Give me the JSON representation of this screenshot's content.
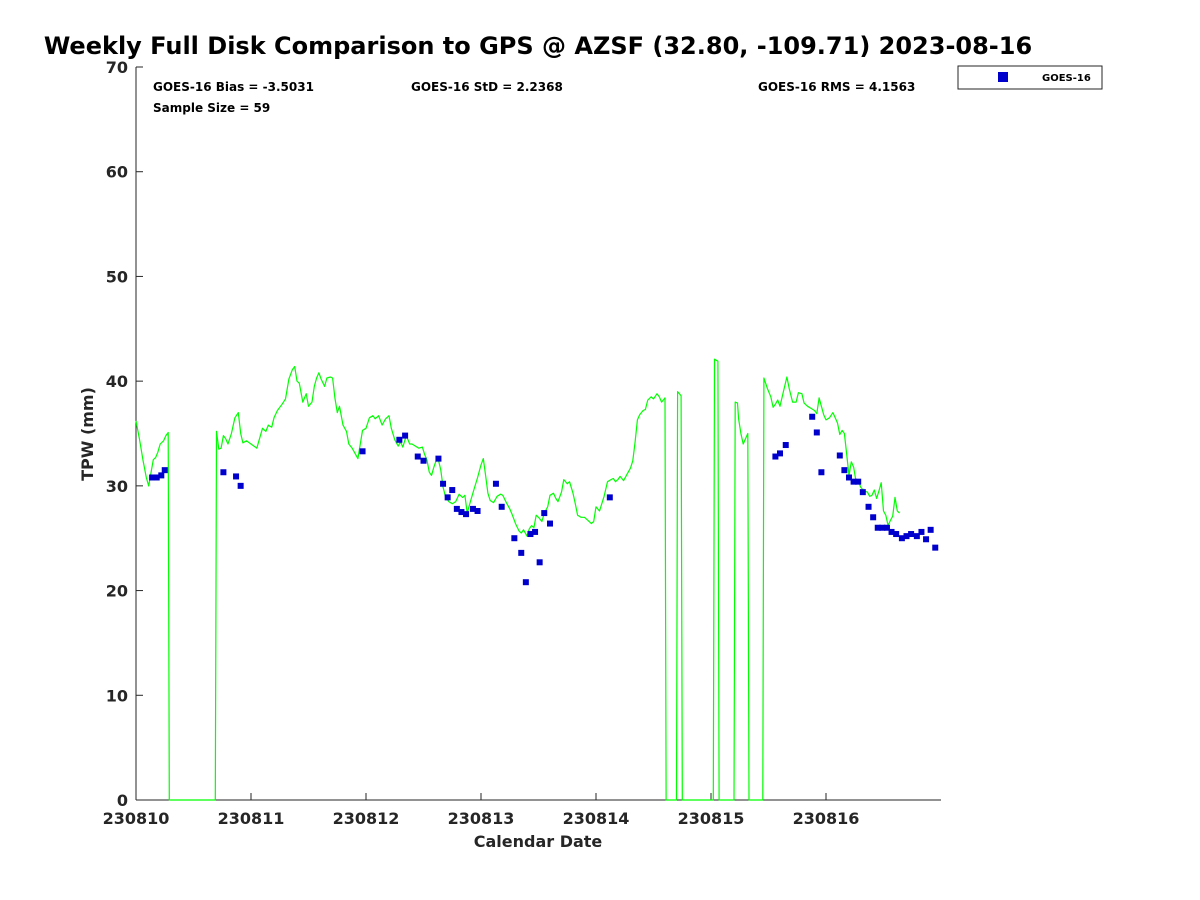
{
  "chart_data": {
    "type": "scatter",
    "title": "Weekly Full Disk Comparison to GPS @ AZSF (32.80, -109.71) 2023-08-16",
    "xlabel": "Calendar Date",
    "ylabel": "TPW (mm)",
    "xlim": [
      0,
      7
    ],
    "ylim": [
      0,
      70
    ],
    "x_tick_values": [
      0,
      1,
      2,
      3,
      4,
      5,
      6
    ],
    "x_tick_labels": [
      "230810",
      "230811",
      "230812",
      "230813",
      "230814",
      "230815",
      "230816"
    ],
    "y_tick_values": [
      0,
      10,
      20,
      30,
      40,
      50,
      60,
      70
    ],
    "y_tick_labels": [
      "0",
      "10",
      "20",
      "30",
      "40",
      "50",
      "60",
      "70"
    ],
    "stats": {
      "bias": "GOES-16 Bias = -3.5031",
      "std": "GOES-16 StD = 2.2368",
      "rms": "GOES-16 RMS = 4.1563",
      "sample": "Sample Size = 59"
    },
    "legend": {
      "label": "GOES-16",
      "position": "top-right outside",
      "marker_color": "#0000cc"
    },
    "series": [
      {
        "name": "GOES-16",
        "kind": "scatter",
        "color": "#0000cc",
        "points": [
          [
            0.14,
            30.8
          ],
          [
            0.18,
            30.8
          ],
          [
            0.22,
            31.0
          ],
          [
            0.25,
            31.5
          ],
          [
            0.76,
            31.3
          ],
          [
            0.87,
            30.9
          ],
          [
            0.91,
            30.0
          ],
          [
            1.97,
            33.3
          ],
          [
            2.29,
            34.4
          ],
          [
            2.34,
            34.8
          ],
          [
            2.45,
            32.8
          ],
          [
            2.5,
            32.4
          ],
          [
            2.63,
            32.6
          ],
          [
            2.67,
            30.2
          ],
          [
            2.71,
            28.9
          ],
          [
            2.75,
            29.6
          ],
          [
            2.79,
            27.8
          ],
          [
            2.83,
            27.5
          ],
          [
            2.87,
            27.3
          ],
          [
            2.93,
            27.8
          ],
          [
            2.97,
            27.6
          ],
          [
            3.13,
            30.2
          ],
          [
            3.18,
            28.0
          ],
          [
            3.29,
            25.0
          ],
          [
            3.35,
            23.6
          ],
          [
            3.39,
            20.8
          ],
          [
            3.43,
            25.4
          ],
          [
            3.47,
            25.6
          ],
          [
            3.51,
            22.7
          ],
          [
            3.55,
            27.4
          ],
          [
            3.6,
            26.4
          ],
          [
            4.12,
            28.9
          ],
          [
            5.56,
            32.8
          ],
          [
            5.6,
            33.1
          ],
          [
            5.65,
            33.9
          ],
          [
            5.88,
            36.6
          ],
          [
            5.92,
            35.1
          ],
          [
            5.96,
            31.3
          ],
          [
            6.12,
            32.9
          ],
          [
            6.16,
            31.5
          ],
          [
            6.2,
            30.8
          ],
          [
            6.24,
            30.4
          ],
          [
            6.28,
            30.4
          ],
          [
            6.32,
            29.4
          ],
          [
            6.37,
            28.0
          ],
          [
            6.41,
            27.0
          ],
          [
            6.45,
            26.0
          ],
          [
            6.49,
            26.0
          ],
          [
            6.53,
            26.0
          ],
          [
            6.57,
            25.6
          ],
          [
            6.61,
            25.4
          ],
          [
            6.66,
            25.0
          ],
          [
            6.7,
            25.2
          ],
          [
            6.74,
            25.4
          ],
          [
            6.79,
            25.2
          ],
          [
            6.83,
            25.6
          ],
          [
            6.87,
            24.9
          ],
          [
            6.91,
            25.8
          ],
          [
            6.95,
            24.1
          ]
        ]
      },
      {
        "name": "GPS",
        "kind": "line",
        "color": "#00ff00",
        "points": [
          [
            0.0,
            36.2
          ],
          [
            0.03,
            34.5
          ],
          [
            0.06,
            32.5
          ],
          [
            0.09,
            30.8
          ],
          [
            0.11,
            30.0
          ],
          [
            0.13,
            31.2
          ],
          [
            0.15,
            32.5
          ],
          [
            0.17,
            32.7
          ],
          [
            0.19,
            33.2
          ],
          [
            0.21,
            34.0
          ],
          [
            0.24,
            34.3
          ],
          [
            0.26,
            34.8
          ],
          [
            0.28,
            35.1
          ],
          [
            0.29,
            0
          ],
          [
            0.69,
            0
          ],
          [
            0.7,
            35.2
          ],
          [
            0.72,
            33.5
          ],
          [
            0.74,
            33.6
          ],
          [
            0.76,
            34.8
          ],
          [
            0.78,
            34.5
          ],
          [
            0.8,
            34.0
          ],
          [
            0.83,
            35.0
          ],
          [
            0.86,
            36.5
          ],
          [
            0.89,
            37.0
          ],
          [
            0.91,
            35.0
          ],
          [
            0.93,
            34.1
          ],
          [
            0.96,
            34.3
          ],
          [
            1.0,
            34.0
          ],
          [
            1.05,
            33.6
          ],
          [
            1.1,
            35.5
          ],
          [
            1.13,
            35.2
          ],
          [
            1.15,
            35.8
          ],
          [
            1.18,
            35.6
          ],
          [
            1.2,
            36.5
          ],
          [
            1.23,
            37.2
          ],
          [
            1.27,
            37.8
          ],
          [
            1.3,
            38.3
          ],
          [
            1.33,
            40.2
          ],
          [
            1.36,
            41.1
          ],
          [
            1.38,
            41.4
          ],
          [
            1.4,
            40.0
          ],
          [
            1.42,
            39.8
          ],
          [
            1.45,
            38.0
          ],
          [
            1.48,
            38.8
          ],
          [
            1.5,
            37.6
          ],
          [
            1.53,
            38.0
          ],
          [
            1.55,
            39.5
          ],
          [
            1.57,
            40.3
          ],
          [
            1.59,
            40.8
          ],
          [
            1.61,
            40.2
          ],
          [
            1.64,
            39.5
          ],
          [
            1.66,
            40.3
          ],
          [
            1.69,
            40.4
          ],
          [
            1.71,
            40.3
          ],
          [
            1.73,
            38.4
          ],
          [
            1.75,
            37.0
          ],
          [
            1.77,
            37.6
          ],
          [
            1.8,
            35.8
          ],
          [
            1.83,
            35.2
          ],
          [
            1.85,
            34.0
          ],
          [
            1.88,
            33.6
          ],
          [
            1.91,
            33.0
          ],
          [
            1.93,
            32.6
          ],
          [
            1.95,
            34.0
          ],
          [
            1.97,
            35.3
          ],
          [
            2.0,
            35.5
          ],
          [
            2.03,
            36.5
          ],
          [
            2.06,
            36.7
          ],
          [
            2.08,
            36.4
          ],
          [
            2.11,
            36.7
          ],
          [
            2.14,
            35.8
          ],
          [
            2.17,
            36.4
          ],
          [
            2.2,
            36.7
          ],
          [
            2.22,
            35.5
          ],
          [
            2.25,
            34.4
          ],
          [
            2.28,
            33.8
          ],
          [
            2.3,
            34.2
          ],
          [
            2.32,
            33.7
          ],
          [
            2.35,
            34.8
          ],
          [
            2.38,
            34.0
          ],
          [
            2.4,
            34.0
          ],
          [
            2.43,
            33.8
          ],
          [
            2.46,
            33.6
          ],
          [
            2.49,
            33.7
          ],
          [
            2.51,
            33.0
          ],
          [
            2.53,
            32.5
          ],
          [
            2.55,
            31.3
          ],
          [
            2.57,
            31.0
          ],
          [
            2.59,
            31.8
          ],
          [
            2.61,
            32.4
          ],
          [
            2.63,
            32.5
          ],
          [
            2.65,
            31.5
          ],
          [
            2.67,
            29.9
          ],
          [
            2.69,
            29.0
          ],
          [
            2.72,
            28.5
          ],
          [
            2.75,
            28.3
          ],
          [
            2.78,
            28.5
          ],
          [
            2.81,
            29.2
          ],
          [
            2.84,
            28.9
          ],
          [
            2.86,
            29.1
          ],
          [
            2.88,
            27.4
          ],
          [
            2.91,
            28.6
          ],
          [
            2.94,
            29.7
          ],
          [
            2.97,
            30.8
          ],
          [
            3.0,
            32.0
          ],
          [
            3.02,
            32.6
          ],
          [
            3.04,
            31.0
          ],
          [
            3.06,
            29.3
          ],
          [
            3.08,
            28.6
          ],
          [
            3.11,
            28.4
          ],
          [
            3.14,
            29.0
          ],
          [
            3.17,
            29.2
          ],
          [
            3.19,
            29.1
          ],
          [
            3.22,
            28.4
          ],
          [
            3.25,
            27.8
          ],
          [
            3.27,
            27.3
          ],
          [
            3.3,
            26.4
          ],
          [
            3.33,
            25.7
          ],
          [
            3.35,
            25.5
          ],
          [
            3.37,
            25.8
          ],
          [
            3.4,
            25.2
          ],
          [
            3.42,
            25.9
          ],
          [
            3.44,
            26.2
          ],
          [
            3.46,
            26.0
          ],
          [
            3.48,
            27.2
          ],
          [
            3.5,
            27.0
          ],
          [
            3.53,
            26.6
          ],
          [
            3.55,
            27.4
          ],
          [
            3.58,
            28.0
          ],
          [
            3.6,
            29.1
          ],
          [
            3.63,
            29.3
          ],
          [
            3.65,
            28.8
          ],
          [
            3.67,
            28.5
          ],
          [
            3.7,
            29.4
          ],
          [
            3.72,
            30.6
          ],
          [
            3.75,
            30.2
          ],
          [
            3.77,
            30.4
          ],
          [
            3.8,
            29.3
          ],
          [
            3.82,
            28.3
          ],
          [
            3.84,
            27.2
          ],
          [
            3.87,
            27.0
          ],
          [
            3.9,
            27.0
          ],
          [
            3.93,
            26.7
          ],
          [
            3.96,
            26.4
          ],
          [
            3.98,
            26.6
          ],
          [
            4.0,
            28.0
          ],
          [
            4.03,
            27.6
          ],
          [
            4.05,
            28.3
          ],
          [
            4.07,
            29.0
          ],
          [
            4.1,
            30.4
          ],
          [
            4.13,
            30.6
          ],
          [
            4.15,
            30.7
          ],
          [
            4.17,
            30.4
          ],
          [
            4.19,
            30.6
          ],
          [
            4.21,
            30.9
          ],
          [
            4.24,
            30.5
          ],
          [
            4.27,
            31.1
          ],
          [
            4.3,
            31.7
          ],
          [
            4.32,
            32.4
          ],
          [
            4.34,
            34.2
          ],
          [
            4.36,
            36.3
          ],
          [
            4.38,
            36.8
          ],
          [
            4.41,
            37.2
          ],
          [
            4.43,
            37.3
          ],
          [
            4.45,
            38.2
          ],
          [
            4.48,
            38.5
          ],
          [
            4.5,
            38.3
          ],
          [
            4.53,
            38.8
          ],
          [
            4.55,
            38.5
          ],
          [
            4.57,
            38.0
          ],
          [
            4.6,
            38.4
          ],
          [
            4.61,
            0
          ],
          [
            4.7,
            0
          ],
          [
            4.71,
            39.0
          ],
          [
            4.74,
            38.6
          ],
          [
            4.75,
            0
          ],
          [
            5.02,
            0
          ],
          [
            5.03,
            42.1
          ],
          [
            5.06,
            41.9
          ],
          [
            5.07,
            0
          ],
          [
            5.2,
            0
          ],
          [
            5.21,
            38.0
          ],
          [
            5.23,
            37.9
          ],
          [
            5.24,
            36.4
          ],
          [
            5.26,
            35.0
          ],
          [
            5.28,
            34.0
          ],
          [
            5.3,
            34.5
          ],
          [
            5.32,
            35.0
          ],
          [
            5.33,
            0
          ],
          [
            5.45,
            0
          ],
          [
            5.46,
            40.3
          ],
          [
            5.49,
            39.3
          ],
          [
            5.52,
            38.5
          ],
          [
            5.54,
            37.5
          ],
          [
            5.56,
            37.8
          ],
          [
            5.58,
            38.2
          ],
          [
            5.6,
            37.6
          ],
          [
            5.63,
            39.0
          ],
          [
            5.66,
            40.4
          ],
          [
            5.68,
            39.3
          ],
          [
            5.71,
            38.0
          ],
          [
            5.74,
            38.0
          ],
          [
            5.76,
            38.9
          ],
          [
            5.79,
            38.8
          ],
          [
            5.81,
            37.9
          ],
          [
            5.84,
            37.6
          ],
          [
            5.87,
            37.4
          ],
          [
            5.9,
            37.2
          ],
          [
            5.92,
            36.9
          ],
          [
            5.94,
            38.4
          ],
          [
            5.96,
            37.6
          ],
          [
            5.98,
            36.8
          ],
          [
            6.0,
            36.3
          ],
          [
            6.03,
            36.5
          ],
          [
            6.06,
            37.0
          ],
          [
            6.08,
            36.5
          ],
          [
            6.1,
            36.0
          ],
          [
            6.12,
            34.9
          ],
          [
            6.14,
            35.3
          ],
          [
            6.16,
            35.0
          ],
          [
            6.18,
            33.0
          ],
          [
            6.2,
            31.0
          ],
          [
            6.22,
            32.3
          ],
          [
            6.24,
            31.8
          ],
          [
            6.26,
            30.5
          ],
          [
            6.28,
            30.6
          ],
          [
            6.3,
            29.9
          ],
          [
            6.33,
            29.5
          ],
          [
            6.36,
            29.4
          ],
          [
            6.38,
            29.0
          ],
          [
            6.4,
            29.1
          ],
          [
            6.42,
            29.6
          ],
          [
            6.44,
            28.8
          ],
          [
            6.46,
            29.5
          ],
          [
            6.48,
            30.3
          ],
          [
            6.5,
            27.6
          ],
          [
            6.52,
            27.2
          ],
          [
            6.54,
            26.2
          ],
          [
            6.56,
            26.7
          ],
          [
            6.58,
            27.1
          ],
          [
            6.6,
            28.9
          ],
          [
            6.62,
            27.6
          ],
          [
            6.64,
            27.4
          ]
        ]
      }
    ]
  }
}
